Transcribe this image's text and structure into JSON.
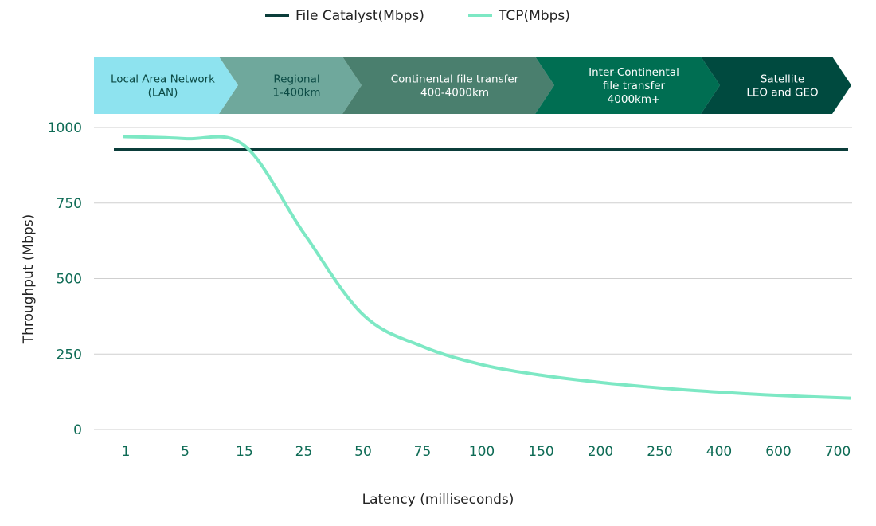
{
  "chart_data": {
    "type": "line",
    "title": "",
    "xlabel": "Latency (milliseconds)",
    "ylabel": "Throughput (Mbps)",
    "categories": [
      "1",
      "5",
      "15",
      "25",
      "50",
      "75",
      "100",
      "150",
      "200",
      "250",
      "400",
      "600",
      "700"
    ],
    "ylim": [
      0,
      1000
    ],
    "yticks": [
      0,
      250,
      500,
      750,
      1000
    ],
    "grid": true,
    "legend_position": "top-center",
    "series": [
      {
        "name": "File Catalyst(Mbps)",
        "color": "#0b3d3a",
        "values": [
          926,
          926,
          926,
          926,
          926,
          926,
          926,
          926,
          926,
          926,
          926,
          926,
          926
        ]
      },
      {
        "name": "TCP(Mbps)",
        "color": "#7de8c4",
        "values": [
          970,
          963,
          940,
          650,
          380,
          275,
          215,
          180,
          156,
          138,
          124,
          113,
          104
        ]
      }
    ],
    "bands": [
      {
        "label": [
          "Local Area Network",
          "(LAN)"
        ],
        "color": "#8ee3ef",
        "text_color": "#0b4a44"
      },
      {
        "label": [
          "Regional",
          "1-400km"
        ],
        "color": "#6fa89c",
        "text_color": "#0b4a44"
      },
      {
        "label": [
          "Continental file transfer",
          "400-4000km"
        ],
        "color": "#4a7f6e",
        "text_color": "#ffffff"
      },
      {
        "label": [
          "Inter-Continental",
          "file transfer",
          "4000km+"
        ],
        "color": "#006e52",
        "text_color": "#ffffff"
      },
      {
        "label": [
          "Satellite",
          "LEO and GEO"
        ],
        "color": "#004a3f",
        "text_color": "#ffffff"
      }
    ],
    "tick_color": "#0e6b55"
  }
}
